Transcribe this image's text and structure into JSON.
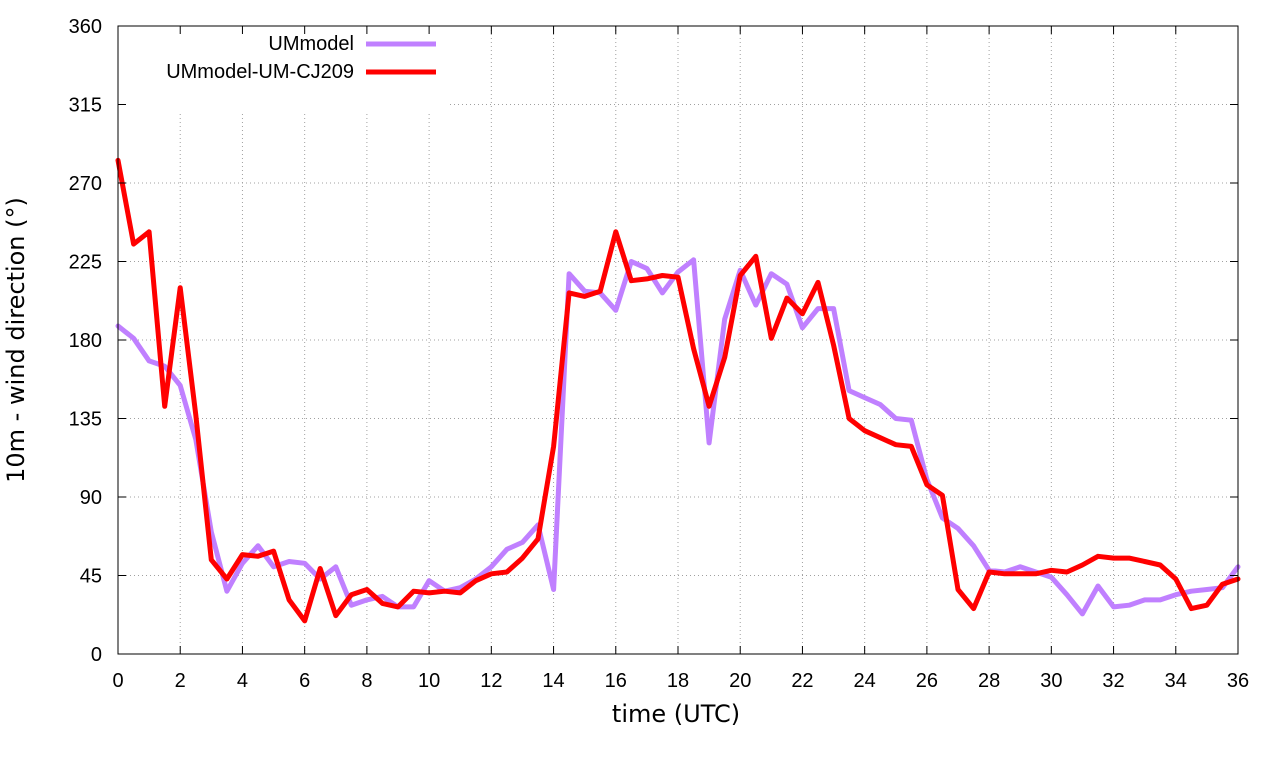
{
  "chart_data": {
    "type": "line",
    "xlabel": "time (UTC)",
    "ylabel": "10m - wind direction (°)",
    "xlim": [
      0,
      36
    ],
    "ylim": [
      0,
      360
    ],
    "xticks": [
      0,
      2,
      4,
      6,
      8,
      10,
      12,
      14,
      16,
      18,
      20,
      22,
      24,
      26,
      28,
      30,
      32,
      34,
      36
    ],
    "yticks": [
      0,
      45,
      90,
      135,
      180,
      225,
      270,
      315,
      360
    ],
    "grid": true,
    "legend_position": "top-left",
    "series": [
      {
        "name": "UMmodel",
        "color": "#c080ff",
        "x": [
          0,
          0.5,
          1,
          1.5,
          2,
          2.5,
          3,
          3.5,
          4,
          4.5,
          5,
          5.5,
          6,
          6.5,
          7,
          7.5,
          8,
          8.5,
          9,
          9.5,
          10,
          10.5,
          11,
          11.5,
          12,
          12.5,
          13,
          13.5,
          14,
          14.5,
          15,
          15.5,
          16,
          16.5,
          17,
          17.5,
          18,
          18.5,
          19,
          19.5,
          20,
          20.5,
          21,
          21.5,
          22,
          22.5,
          23,
          23.5,
          24,
          24.5,
          25,
          25.5,
          26,
          26.5,
          27,
          27.5,
          28,
          28.5,
          29,
          29.5,
          30,
          30.5,
          31,
          31.5,
          32,
          32.5,
          33,
          33.5,
          34,
          34.5,
          35,
          35.5,
          36
        ],
        "y": [
          188,
          181,
          168,
          165,
          154,
          123,
          70,
          36,
          52,
          62,
          50,
          53,
          52,
          43,
          50,
          28,
          31,
          33,
          27,
          27,
          42,
          36,
          38,
          43,
          50,
          60,
          64,
          74,
          37,
          218,
          208,
          207,
          197,
          225,
          221,
          207,
          219,
          226,
          121,
          192,
          220,
          200,
          218,
          212,
          187,
          198,
          198,
          151,
          147,
          143,
          135,
          134,
          100,
          78,
          72,
          62,
          48,
          47,
          50,
          47,
          44,
          34,
          23,
          39,
          27,
          28,
          31,
          31,
          34,
          36,
          37,
          38,
          50
        ]
      },
      {
        "name": "UMmodel-UM-CJ209",
        "color": "#ff0000",
        "x": [
          0,
          0.5,
          1,
          1.5,
          2,
          2.5,
          3,
          3.5,
          4,
          4.5,
          5,
          5.5,
          6,
          6.5,
          7,
          7.5,
          8,
          8.5,
          9,
          9.5,
          10,
          10.5,
          11,
          11.5,
          12,
          12.5,
          13,
          13.5,
          14,
          14.5,
          15,
          15.5,
          16,
          16.5,
          17,
          17.5,
          18,
          18.5,
          19,
          19.5,
          20,
          20.5,
          21,
          21.5,
          22,
          22.5,
          23,
          23.5,
          24,
          24.5,
          25,
          25.5,
          26,
          26.5,
          27,
          27.5,
          28,
          28.5,
          29,
          29.5,
          30,
          30.5,
          31,
          31.5,
          32,
          32.5,
          33,
          33.5,
          34,
          34.5,
          35,
          35.5,
          36
        ],
        "y": [
          283,
          235,
          242,
          142,
          210,
          137,
          54,
          43,
          57,
          56,
          59,
          31,
          19,
          49,
          22,
          34,
          37,
          29,
          27,
          36,
          35,
          36,
          35,
          42,
          46,
          47,
          55,
          66,
          119,
          207,
          205,
          208,
          242,
          214,
          215,
          217,
          216,
          175,
          142,
          170,
          217,
          228,
          181,
          204,
          195,
          213,
          177,
          135,
          128,
          124,
          120,
          119,
          97,
          91,
          37,
          26,
          47,
          46,
          46,
          46,
          48,
          47,
          51,
          56,
          55,
          55,
          53,
          51,
          43,
          26,
          28,
          40,
          43
        ]
      }
    ]
  }
}
